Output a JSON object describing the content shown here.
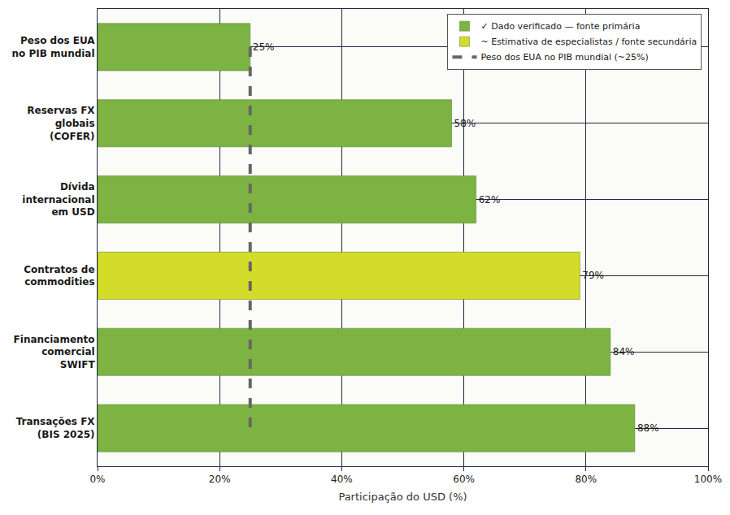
{
  "chart_data": {
    "type": "bar",
    "orientation": "horizontal",
    "categories": [
      "Peso dos EUA no PIB mundial",
      "Reservas FX globais (COFER)",
      "Dívida internacional em USD",
      "Contratos de commodities",
      "Financiamento comercial SWIFT",
      "Transações FX (BIS 2025)"
    ],
    "series": [
      {
        "name": "✓ Dado verificado — fonte primária",
        "color": "#7cb342",
        "values": [
          25,
          58,
          62,
          null,
          84,
          88
        ],
        "value_labels": [
          "25%",
          "58%",
          "62%",
          null,
          "84%",
          "88%"
        ]
      },
      {
        "name": "~ Estimativa de especialistas / fonte secundária",
        "color": "#d4dc2a",
        "values": [
          null,
          null,
          null,
          79,
          null,
          null
        ],
        "value_labels": [
          null,
          null,
          null,
          "79%",
          null,
          null
        ]
      },
      {
        "name": "Peso dos EUA no PIB mundial (~25%)",
        "type": "line",
        "line_style": "dashed",
        "color": "#666666",
        "values": [
          25,
          25,
          25,
          25,
          25,
          25
        ]
      }
    ],
    "x_label": "Participação do USD (%)",
    "xlim": [
      0,
      100
    ],
    "xticks": [
      {
        "value": 0,
        "label": "0%"
      },
      {
        "value": 20,
        "label": "20%"
      },
      {
        "value": 40,
        "label": "40%"
      },
      {
        "value": 60,
        "label": "60%"
      },
      {
        "value": 80,
        "label": "80%"
      },
      {
        "value": 100,
        "label": "100%"
      }
    ],
    "grid": true,
    "legend": "upper right",
    "data_labels": true
  }
}
